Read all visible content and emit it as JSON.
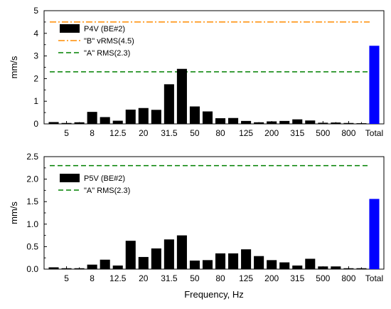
{
  "chart_data": [
    {
      "type": "bar",
      "ylabel": "mm/s",
      "xlabel": "",
      "ylim": [
        0,
        5
      ],
      "yticks": [
        "0",
        "1",
        "2",
        "3",
        "4",
        "5"
      ],
      "tick_labels": [
        "",
        "5",
        "",
        "8",
        "",
        "12.5",
        "",
        "20",
        "",
        "31.5",
        "",
        "50",
        "",
        "80",
        "",
        "125",
        "",
        "200",
        "",
        "315",
        "",
        "500",
        "",
        "800",
        "",
        "Total"
      ],
      "series": [
        {
          "name": "P4V (BE#2)",
          "color": "#000000",
          "values": [
            0.08,
            0.04,
            0.07,
            0.53,
            0.3,
            0.14,
            0.63,
            0.7,
            0.62,
            1.75,
            2.43,
            0.77,
            0.55,
            0.25,
            0.26,
            0.13,
            0.07,
            0.11,
            0.13,
            0.2,
            0.15,
            0.05,
            0.06,
            0.04,
            0.03
          ]
        },
        {
          "name": "Total",
          "color": "#0000FF",
          "values": [
            3.45
          ]
        }
      ],
      "reference_lines": [
        {
          "name": "\"B\" vRMS(4.5)",
          "value": 4.5,
          "color": "#FF8C00",
          "style": "dash-dot"
        },
        {
          "name": "\"A\"  RMS(2.3)",
          "value": 2.3,
          "color": "#008000",
          "style": "dashed"
        }
      ],
      "legend_position": "top-left"
    },
    {
      "type": "bar",
      "ylabel": "mm/s",
      "xlabel": "Frequency, Hz",
      "ylim": [
        0,
        2.5
      ],
      "yticks": [
        "0.0",
        "0.5",
        "1.0",
        "1.5",
        "2.0",
        "2.5"
      ],
      "tick_labels": [
        "",
        "5",
        "",
        "8",
        "",
        "12.5",
        "",
        "20",
        "",
        "31.5",
        "",
        "50",
        "",
        "80",
        "",
        "125",
        "",
        "200",
        "",
        "315",
        "",
        "500",
        "",
        "800",
        "",
        "Total"
      ],
      "series": [
        {
          "name": "P5V (BE#2)",
          "color": "#000000",
          "values": [
            0.04,
            0.02,
            0.02,
            0.1,
            0.21,
            0.08,
            0.63,
            0.27,
            0.46,
            0.66,
            0.75,
            0.19,
            0.2,
            0.35,
            0.35,
            0.44,
            0.29,
            0.2,
            0.15,
            0.08,
            0.23,
            0.06,
            0.06,
            0.02,
            0.02
          ]
        },
        {
          "name": "Total",
          "color": "#0000FF",
          "values": [
            1.56
          ]
        }
      ],
      "reference_lines": [
        {
          "name": "\"A\"  RMS(2.3)",
          "value": 2.3,
          "color": "#008000",
          "style": "dashed"
        }
      ],
      "legend_position": "top-left"
    }
  ]
}
